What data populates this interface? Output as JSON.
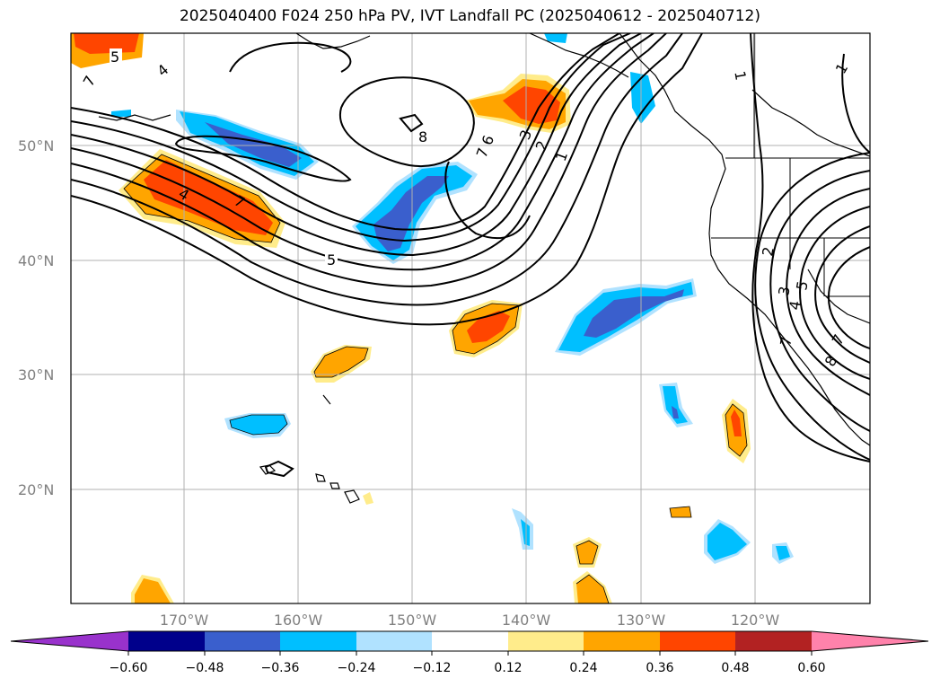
{
  "title": "2025040400 F024 250 hPa PV, IVT Landfall PC (2025040612 - 2025040712)",
  "map": {
    "lat_labels": [
      "50°N",
      "40°N",
      "30°N",
      "20°N"
    ],
    "lon_labels": [
      "170°W",
      "160°W",
      "150°W",
      "140°W",
      "130°W",
      "120°W"
    ],
    "contour_labels": [
      "5",
      "7",
      "4",
      "4",
      "7",
      "5",
      "8",
      "6",
      "7",
      "3",
      "2",
      "1",
      "1",
      "2",
      "3",
      "4",
      "5",
      "7",
      "8",
      "7",
      "1"
    ]
  },
  "colorbar": {
    "ticks": [
      "−0.60",
      "−0.48",
      "−0.36",
      "−0.24",
      "−0.12",
      "0.12",
      "0.24",
      "0.36",
      "0.48",
      "0.60"
    ],
    "colors": {
      "under": "#9932CC",
      "c1": "#00008B",
      "c2": "#3A5FCD",
      "c3": "#00BFFF",
      "c4": "#B0E2FF",
      "c5": "#FFFFFF",
      "c6": "#FFEC8B",
      "c7": "#FFA500",
      "c8": "#FF4500",
      "c9": "#B22222",
      "over": "#FF82AB"
    }
  }
}
